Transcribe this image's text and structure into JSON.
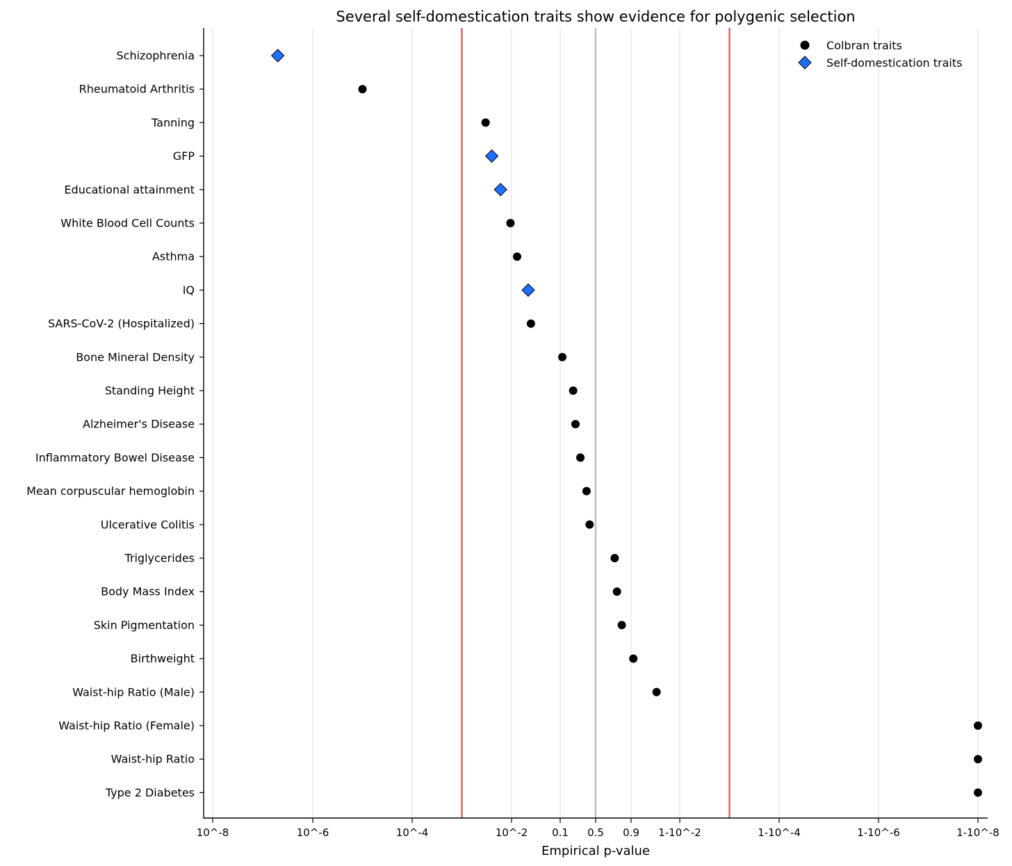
{
  "chart_data": {
    "type": "scatter",
    "title": "Several self-domestication traits show evidence for polygenic selection",
    "xlabel": "Empirical p-value",
    "ylabel": "",
    "x_scale": "two-sided log-odds (p near 0 and near 1 expanded)",
    "xlim": [
      "10^-8",
      "1-10^-8"
    ],
    "x_ticks": [
      "10^-8",
      "10^-6",
      "10^-4",
      "10^-2",
      "0.1",
      "0.5",
      "0.9",
      "1-10^-2",
      "1-10^-4",
      "1-10^-6",
      "1-10^-8"
    ],
    "x_tick_values": [
      1e-08,
      1e-06,
      0.0001,
      0.01,
      0.1,
      0.5,
      0.9,
      0.99,
      0.9999,
      0.999999,
      0.99999999
    ],
    "reference_lines": [
      {
        "label": "",
        "value": 0.001,
        "color": "#d9605c"
      },
      {
        "label": "",
        "value": 0.5,
        "color": "#bdbdbd"
      },
      {
        "label": "",
        "value": 0.999,
        "color": "#d9605c"
      }
    ],
    "grid": "vertical at x ticks",
    "legend": {
      "position": "top-right",
      "entries": [
        "Colbran traits",
        "Self-domestication traits"
      ]
    },
    "series": [
      {
        "name": "Colbran traits",
        "marker": "circle",
        "color": "#000000"
      },
      {
        "name": "Self-domestication traits",
        "marker": "diamond",
        "color": "#1f6fff"
      }
    ],
    "points": [
      {
        "trait": "Schizophrenia",
        "series": "Self-domestication traits",
        "p": 2e-07
      },
      {
        "trait": "Rheumatoid Arthritis",
        "series": "Colbran traits",
        "p": 1e-05
      },
      {
        "trait": "Tanning",
        "series": "Colbran traits",
        "p": 0.003
      },
      {
        "trait": "GFP",
        "series": "Self-domestication traits",
        "p": 0.004
      },
      {
        "trait": "Educational attainment",
        "series": "Self-domestication traits",
        "p": 0.006
      },
      {
        "trait": "White Blood Cell Counts",
        "series": "Colbran traits",
        "p": 0.0095
      },
      {
        "trait": "Asthma",
        "series": "Colbran traits",
        "p": 0.013
      },
      {
        "trait": "IQ",
        "series": "Self-domestication traits",
        "p": 0.022
      },
      {
        "trait": "SARS-CoV-2 (Hospitalized)",
        "series": "Colbran traits",
        "p": 0.025
      },
      {
        "trait": "Bone Mineral Density",
        "series": "Colbran traits",
        "p": 0.11
      },
      {
        "trait": "Standing Height",
        "series": "Colbran traits",
        "p": 0.18
      },
      {
        "trait": "Alzheimer's Disease",
        "series": "Colbran traits",
        "p": 0.2
      },
      {
        "trait": "Inflammatory Bowel Disease",
        "series": "Colbran traits",
        "p": 0.25
      },
      {
        "trait": "Mean corpuscular hemoglobin",
        "series": "Colbran traits",
        "p": 0.33
      },
      {
        "trait": "Ulcerative Colitis",
        "series": "Colbran traits",
        "p": 0.38
      },
      {
        "trait": "Triglycerides",
        "series": "Colbran traits",
        "p": 0.6
      },
      {
        "trait": "Body Mass Index",
        "series": "Colbran traits",
        "p": 0.67
      },
      {
        "trait": "Skin Pigmentation",
        "series": "Colbran traits",
        "p": 0.78
      },
      {
        "trait": "Birthweight",
        "series": "Colbran traits",
        "p": 0.91
      },
      {
        "trait": "Waist-hip Ratio (Male)",
        "series": "Colbran traits",
        "p": 0.97
      },
      {
        "trait": "Waist-hip Ratio (Female)",
        "series": "Colbran traits",
        "p": 0.99999999
      },
      {
        "trait": "Waist-hip Ratio",
        "series": "Colbran traits",
        "p": 0.99999999
      },
      {
        "trait": "Type 2 Diabetes",
        "series": "Colbran traits",
        "p": 0.99999999
      }
    ]
  }
}
